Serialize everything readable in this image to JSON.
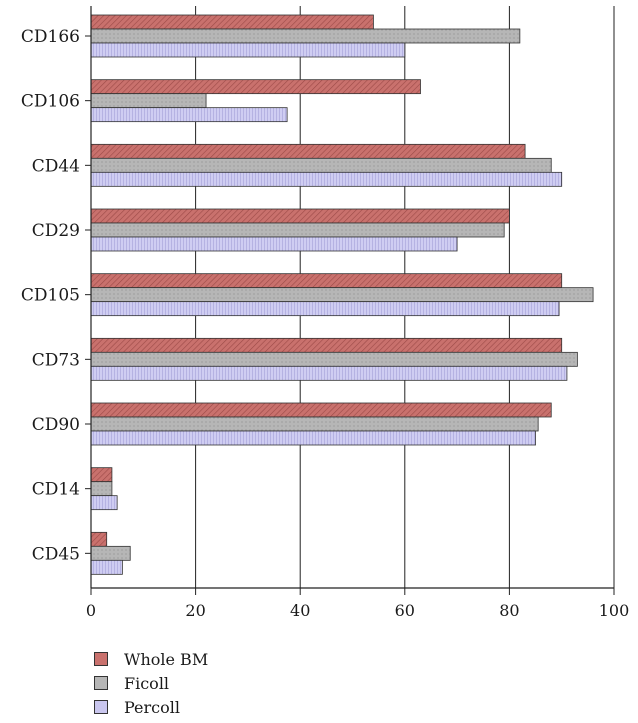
{
  "chart_data": {
    "type": "bar",
    "orientation": "horizontal",
    "categories": [
      "CD166",
      "CD106",
      "CD44",
      "CD29",
      "CD105",
      "CD73",
      "CD90",
      "CD14",
      "CD45"
    ],
    "series": [
      {
        "name": "Whole BM",
        "color": "#c9716d",
        "values": [
          54,
          63,
          83,
          80,
          90,
          90,
          88,
          4,
          3
        ]
      },
      {
        "name": "Ficoll",
        "color": "#b6b6b6",
        "values": [
          82,
          22,
          88,
          79,
          96,
          93,
          85.5,
          4,
          7.5
        ]
      },
      {
        "name": "Percoll",
        "color": "#c9c6ee",
        "values": [
          60,
          37.5,
          90,
          70,
          89.5,
          91,
          85,
          5,
          6
        ]
      }
    ],
    "xlim": [
      0,
      100
    ],
    "xticks": [
      "0",
      "20",
      "40",
      "60",
      "80",
      "100"
    ],
    "grid": "vertical",
    "legend_position": "bottom-left"
  }
}
